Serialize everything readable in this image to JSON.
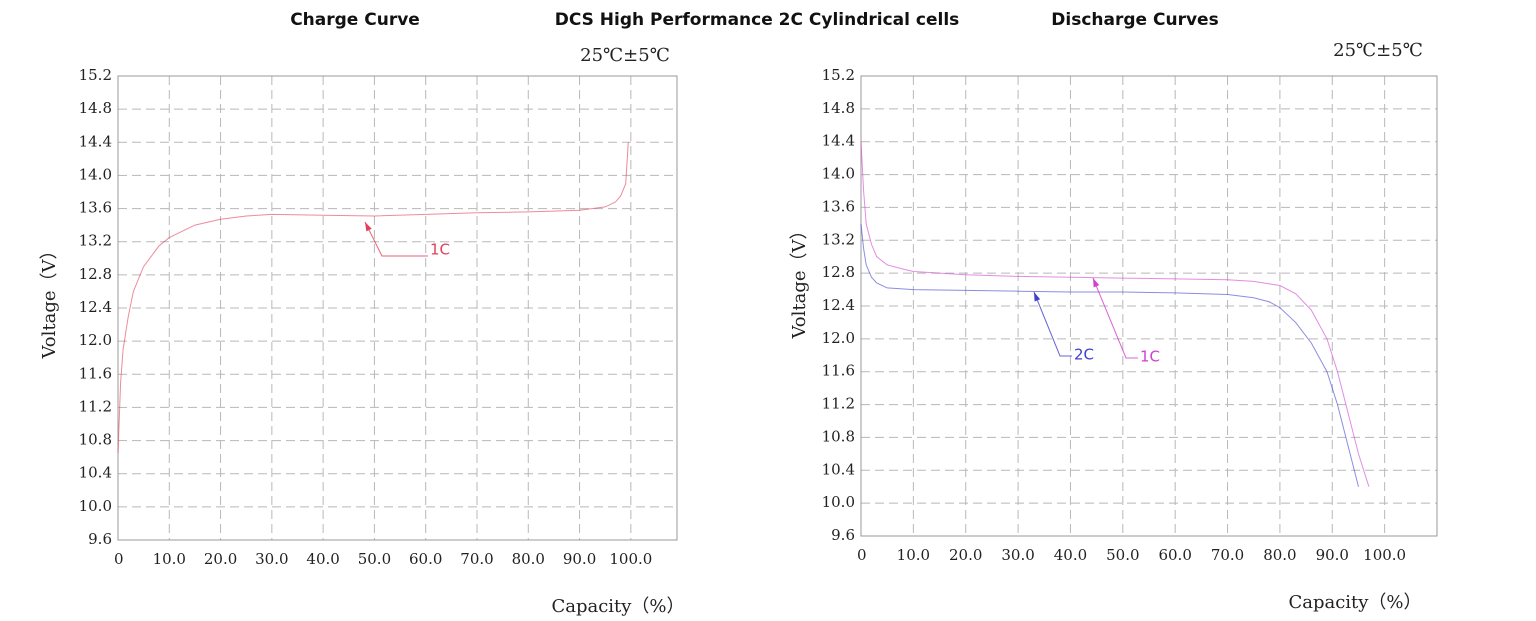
{
  "title": "DCS High Performance 2C Cylindrical cells",
  "chart_data": [
    {
      "type": "line",
      "title": "Charge Curve",
      "subtitle": "25℃±5℃",
      "x_label": "Capacity（%）",
      "y_label": "Voltage（V）",
      "grid": true,
      "xlim": [
        0,
        109
      ],
      "ylim": [
        9.6,
        15.2
      ],
      "xticks": [
        0,
        {
          "value": 10,
          "label": "10.0"
        },
        {
          "value": 20,
          "label": "20.0"
        },
        {
          "value": 30,
          "label": "30.0"
        },
        {
          "value": 40,
          "label": "40.0"
        },
        {
          "value": 50,
          "label": "50.0"
        },
        {
          "value": 60,
          "label": "60.0"
        },
        {
          "value": 70,
          "label": "70.0"
        },
        {
          "value": 80,
          "label": "80.0"
        },
        {
          "value": 90,
          "label": "90.0"
        },
        {
          "value": 100,
          "label": "100.0"
        }
      ],
      "yticks": [
        9.6,
        {
          "value": 10,
          "label": "10.0"
        },
        10.4,
        10.8,
        11.2,
        11.6,
        {
          "value": 12,
          "label": "12.0"
        },
        12.4,
        12.8,
        13.2,
        13.6,
        {
          "value": 14,
          "label": "14.0"
        },
        14.4,
        14.8,
        15.2
      ],
      "series": [
        {
          "name": "1C",
          "color": "#e0405a",
          "x": [
            0,
            0.5,
            1,
            2,
            3,
            5,
            8,
            10,
            15,
            20,
            25,
            30,
            40,
            50,
            60,
            70,
            80,
            85,
            90,
            95,
            97,
            98,
            99,
            99.5
          ],
          "values": [
            10.65,
            11.5,
            11.9,
            12.3,
            12.6,
            12.9,
            13.15,
            13.25,
            13.4,
            13.47,
            13.51,
            13.53,
            13.52,
            13.51,
            13.53,
            13.55,
            13.56,
            13.57,
            13.58,
            13.62,
            13.68,
            13.75,
            13.9,
            14.4
          ]
        }
      ]
    },
    {
      "type": "line",
      "title": "Discharge Curves",
      "subtitle": "25℃±5℃",
      "x_label": "Capacity（%）",
      "y_label": "Voltage（V）",
      "grid": true,
      "xlim": [
        0,
        110
      ],
      "ylim": [
        9.6,
        15.2
      ],
      "xticks": [
        0,
        {
          "value": 10,
          "label": "10.0"
        },
        {
          "value": 20,
          "label": "20.0"
        },
        {
          "value": 30,
          "label": "30.0"
        },
        {
          "value": 40,
          "label": "40.0"
        },
        {
          "value": 50,
          "label": "50.0"
        },
        {
          "value": 60,
          "label": "60.0"
        },
        {
          "value": 70,
          "label": "70.0"
        },
        {
          "value": 80,
          "label": "80.0"
        },
        {
          "value": 90,
          "label": "90.0"
        },
        {
          "value": 100,
          "label": "100.0"
        }
      ],
      "yticks": [
        9.6,
        {
          "value": 10,
          "label": "10.0"
        },
        10.4,
        10.8,
        11.2,
        11.6,
        {
          "value": 12,
          "label": "12.0"
        },
        12.4,
        12.8,
        13.2,
        13.6,
        {
          "value": 14,
          "label": "14.0"
        },
        14.4,
        14.8,
        15.2
      ],
      "series": [
        {
          "name": "2C",
          "color": "#4040d0",
          "x": [
            0,
            0.5,
            1,
            2,
            3,
            5,
            10,
            20,
            30,
            40,
            50,
            60,
            70,
            75,
            78,
            80,
            83,
            86,
            89,
            91,
            93,
            95
          ],
          "values": [
            13.4,
            13.1,
            12.9,
            12.75,
            12.68,
            12.62,
            12.6,
            12.59,
            12.58,
            12.57,
            12.57,
            12.56,
            12.54,
            12.5,
            12.45,
            12.38,
            12.2,
            11.95,
            11.6,
            11.2,
            10.7,
            10.2
          ]
        },
        {
          "name": "1C",
          "color": "#d040d0",
          "x": [
            0,
            0.5,
            1,
            2,
            3,
            5,
            8,
            10,
            15,
            20,
            30,
            40,
            50,
            60,
            70,
            75,
            80,
            83,
            86,
            89,
            91,
            93,
            95,
            97
          ],
          "values": [
            14.4,
            13.8,
            13.4,
            13.15,
            13.0,
            12.9,
            12.85,
            12.82,
            12.8,
            12.78,
            12.76,
            12.75,
            12.74,
            12.73,
            12.72,
            12.7,
            12.65,
            12.55,
            12.35,
            12.0,
            11.6,
            11.1,
            10.6,
            10.2
          ]
        }
      ]
    }
  ]
}
